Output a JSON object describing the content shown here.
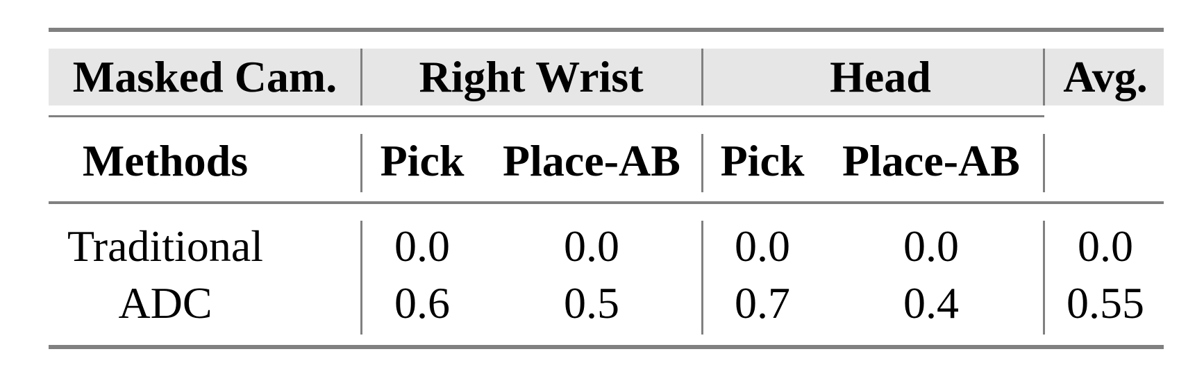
{
  "table": {
    "header_row1": {
      "col0": "Masked Cam.",
      "group1": "Right Wrist",
      "group2": "Head",
      "avg": "Avg."
    },
    "header_row2": {
      "col0": "Methods",
      "cols": [
        "Pick",
        "Place-AB",
        "Pick",
        "Place-AB"
      ]
    },
    "rows": [
      {
        "method": "Traditional",
        "values": [
          "0.0",
          "0.0",
          "0.0",
          "0.0",
          "0.0"
        ]
      },
      {
        "method": "ADC",
        "values": [
          "0.6",
          "0.5",
          "0.7",
          "0.4",
          "0.55"
        ]
      }
    ],
    "header_bg_color": "#e6e6e6",
    "rule_color": "#808080"
  }
}
